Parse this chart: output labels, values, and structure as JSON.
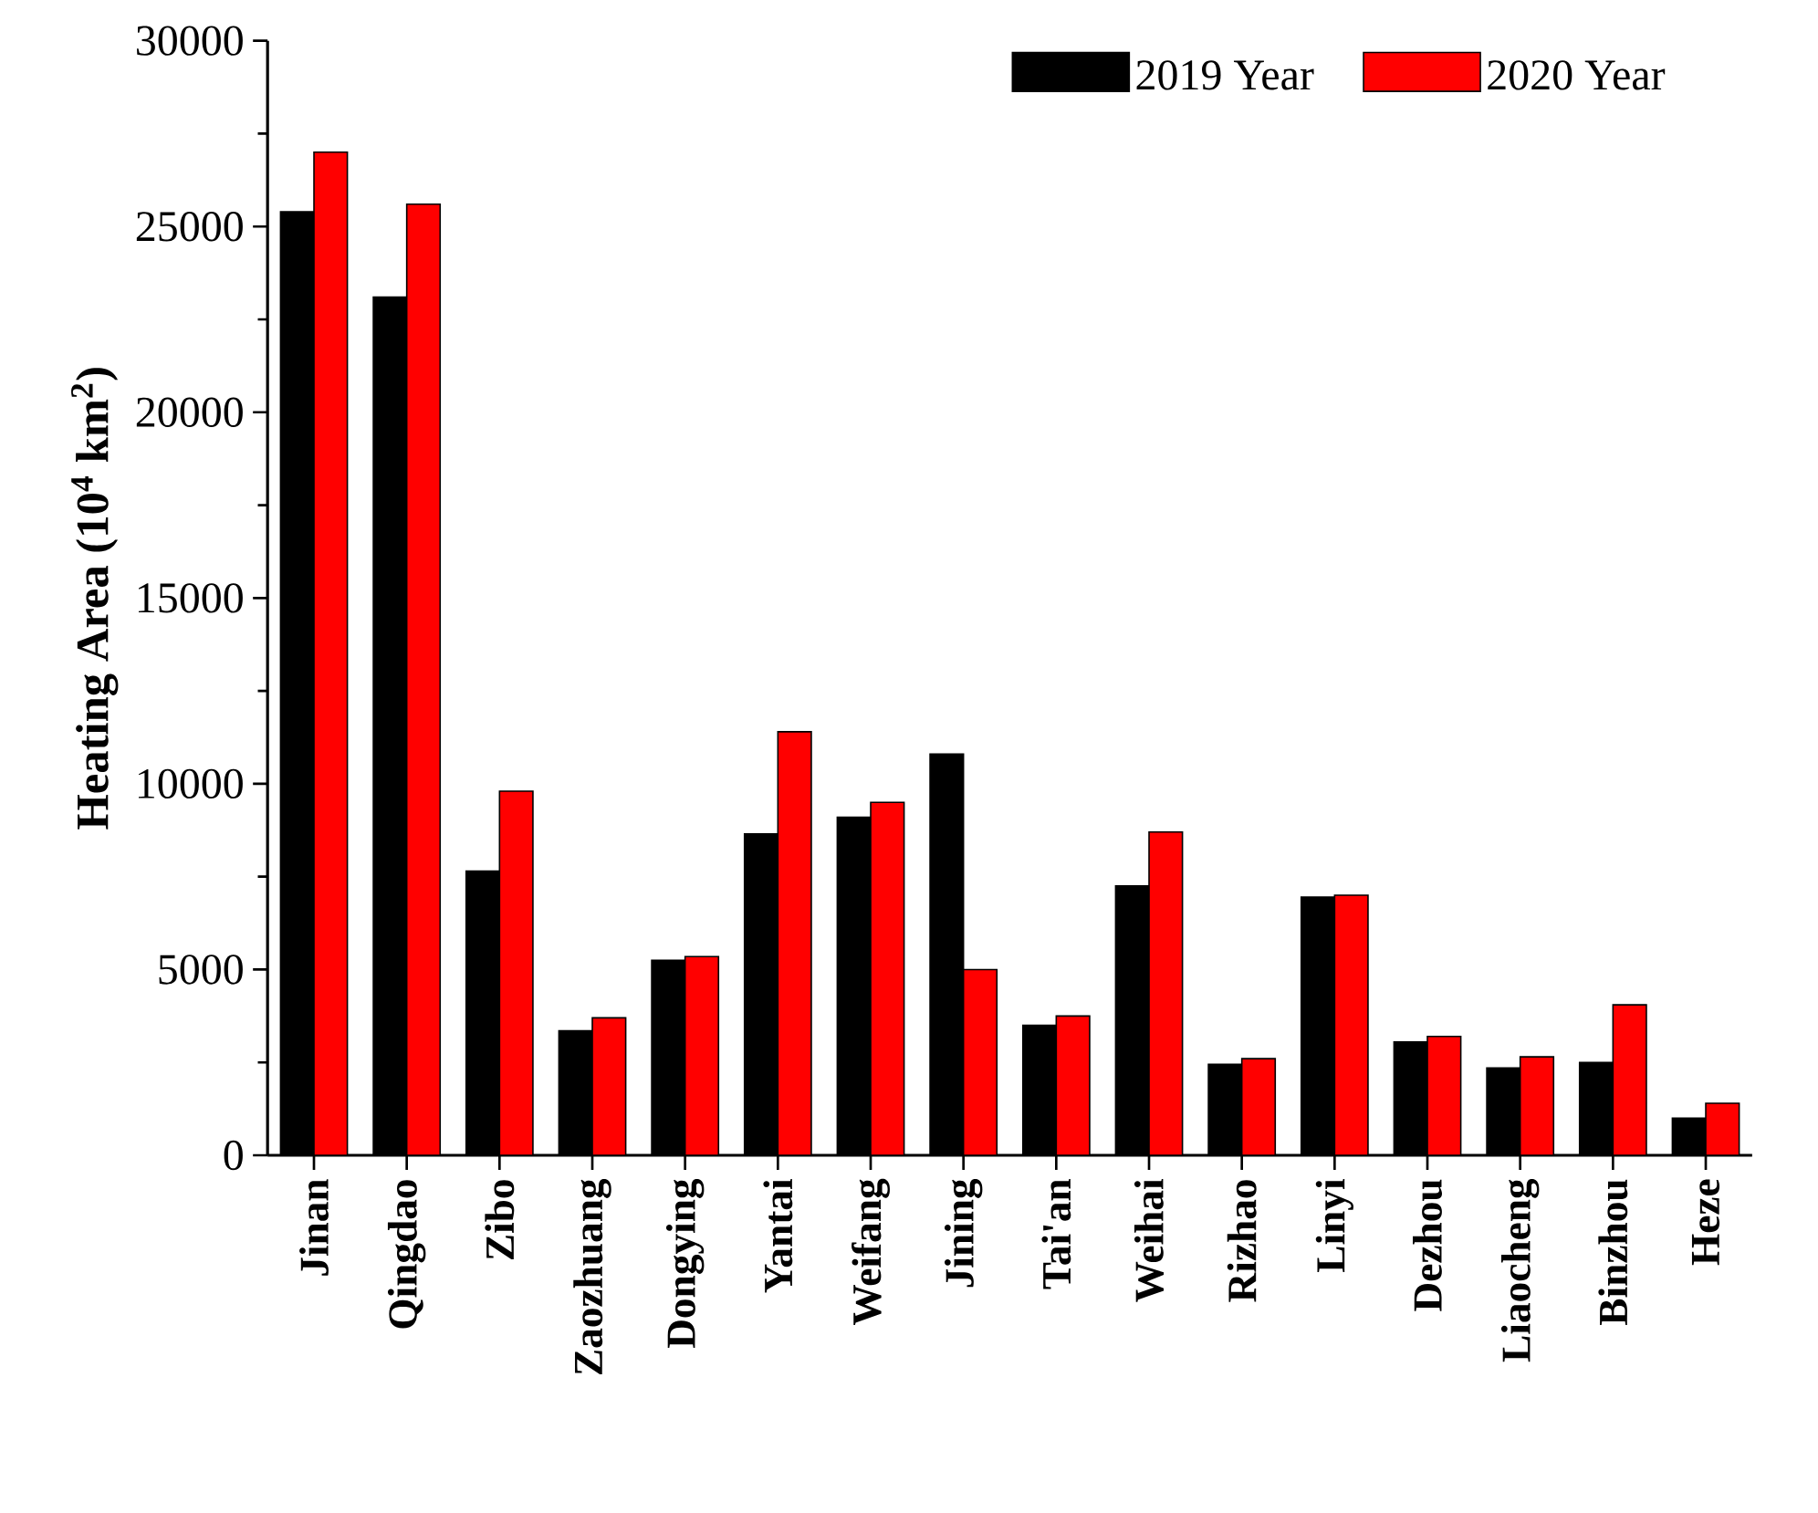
{
  "chart_data": {
    "type": "bar",
    "ylabel": "Heating Area (10$^{4}$ km$^{2}$)",
    "categories": [
      "Jinan",
      "Qingdao",
      "Zibo",
      "Zaozhuang",
      "Dongying",
      "Yantai",
      "Weifang",
      "Jining",
      "Tai'an",
      "Weihai",
      "Rizhao",
      "Linyi",
      "Dezhou",
      "Liaocheng",
      "Binzhou",
      "Heze"
    ],
    "series": [
      {
        "name": "2019 Year",
        "color": "#000000",
        "values": [
          25400,
          23100,
          7650,
          3350,
          5250,
          8650,
          9100,
          10800,
          3500,
          7250,
          2450,
          6950,
          3050,
          2350,
          2500,
          1000
        ]
      },
      {
        "name": "2020 Year",
        "color": "#ff0000",
        "values": [
          27000,
          25600,
          9800,
          3700,
          5350,
          11400,
          9500,
          5000,
          3750,
          8700,
          2600,
          7000,
          3200,
          2650,
          4050,
          1400
        ]
      }
    ],
    "ylim": [
      0,
      30000
    ],
    "yticks": [
      0,
      5000,
      10000,
      15000,
      20000,
      25000,
      30000
    ],
    "legend": "top right",
    "grid": false
  }
}
